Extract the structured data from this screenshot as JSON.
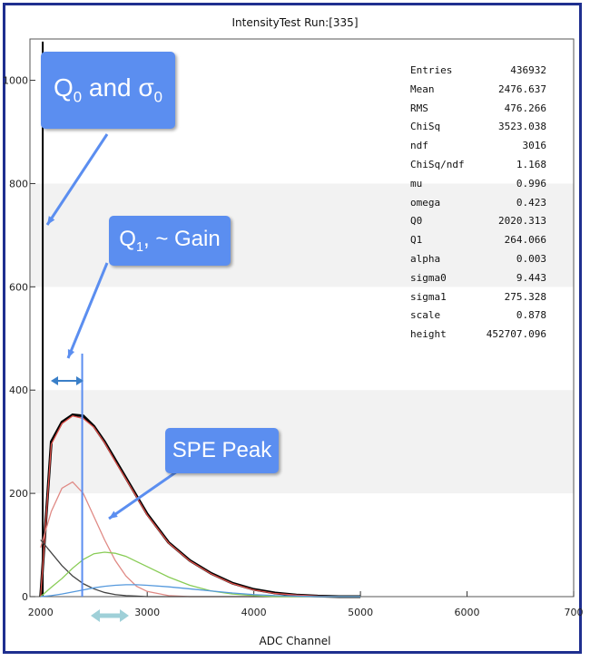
{
  "chart_data": {
    "type": "line",
    "title": "IntensityTest Run:[335]",
    "xlabel": "ADC Channel",
    "ylabel": "",
    "xlim": [
      1900,
      7000
    ],
    "ylim": [
      0,
      1080
    ],
    "x_ticks": [
      "2000",
      "3000",
      "4000",
      "5000",
      "6000",
      "700"
    ],
    "y_ticks": [
      "0",
      "200",
      "400",
      "600",
      "800",
      "1000"
    ],
    "x": [
      2000,
      2100,
      2200,
      2300,
      2400,
      2500,
      2600,
      2700,
      2800,
      2900,
      3000,
      3200,
      3400,
      3600,
      3800,
      4000,
      4200,
      4400,
      4600,
      4800,
      5000
    ],
    "series": [
      {
        "values": [
          0,
          300,
          338,
          352,
          350,
          330,
          300,
          265,
          230,
          195,
          160,
          105,
          70,
          45,
          26,
          14,
          7,
          3,
          1,
          0,
          0
        ],
        "color": "#000000"
      },
      {
        "values": [
          0,
          295,
          335,
          350,
          345,
          328,
          298,
          262,
          228,
          193,
          158,
          104,
          69,
          44,
          25,
          13,
          6,
          3,
          1,
          0,
          0
        ],
        "color": "#e0504a"
      },
      {
        "values": [
          95,
          165,
          210,
          222,
          200,
          155,
          110,
          70,
          40,
          20,
          10,
          2,
          0,
          0,
          0,
          0,
          0,
          0,
          0,
          0,
          0
        ],
        "color": "#e08a85"
      },
      {
        "values": [
          110,
          85,
          60,
          40,
          25,
          15,
          8,
          4,
          2,
          1,
          0,
          0,
          0,
          0,
          0,
          0,
          0,
          0,
          0,
          0,
          0
        ],
        "color": "#444444"
      },
      {
        "values": [
          0,
          18,
          35,
          55,
          72,
          83,
          86,
          84,
          78,
          68,
          58,
          38,
          22,
          11,
          5,
          2,
          0,
          0,
          0,
          0,
          0
        ],
        "color": "#88cc55"
      },
      {
        "values": [
          0,
          2,
          5,
          9,
          13,
          17,
          20,
          22,
          23,
          23,
          22,
          19,
          15,
          11,
          7,
          4,
          2,
          1,
          0,
          0,
          0
        ],
        "color": "#5599dd"
      }
    ],
    "grid": false,
    "legend": "none"
  },
  "stats": [
    {
      "label": "Entries",
      "value": "436932"
    },
    {
      "label": "Mean",
      "value": "2476.637"
    },
    {
      "label": "RMS",
      "value": "476.266"
    },
    {
      "label": "ChiSq",
      "value": "3523.038"
    },
    {
      "label": "ndf",
      "value": "3016"
    },
    {
      "label": "ChiSq/ndf",
      "value": "1.168"
    },
    {
      "label": "mu",
      "value": "0.996"
    },
    {
      "label": "omega",
      "value": "0.423"
    },
    {
      "label": "Q0",
      "value": "2020.313"
    },
    {
      "label": "Q1",
      "value": "264.066"
    },
    {
      "label": "alpha",
      "value": "0.003"
    },
    {
      "label": "sigma0",
      "value": "9.443"
    },
    {
      "label": "sigma1",
      "value": "275.328"
    },
    {
      "label": "scale",
      "value": "0.878"
    },
    {
      "label": "height",
      "value": "452707.096"
    }
  ],
  "callouts": {
    "q0": {
      "main": "Q",
      "sub1": "0",
      "mid": " and σ",
      "sub2": "0"
    },
    "q1": {
      "main": "Q",
      "sub1": "1",
      "mid": ", ~ Gain"
    },
    "spe": "SPE Peak"
  },
  "colors": {
    "frame": "#1f2f8f",
    "callout": "#5b8ef0",
    "band": "#f2f2f2"
  }
}
